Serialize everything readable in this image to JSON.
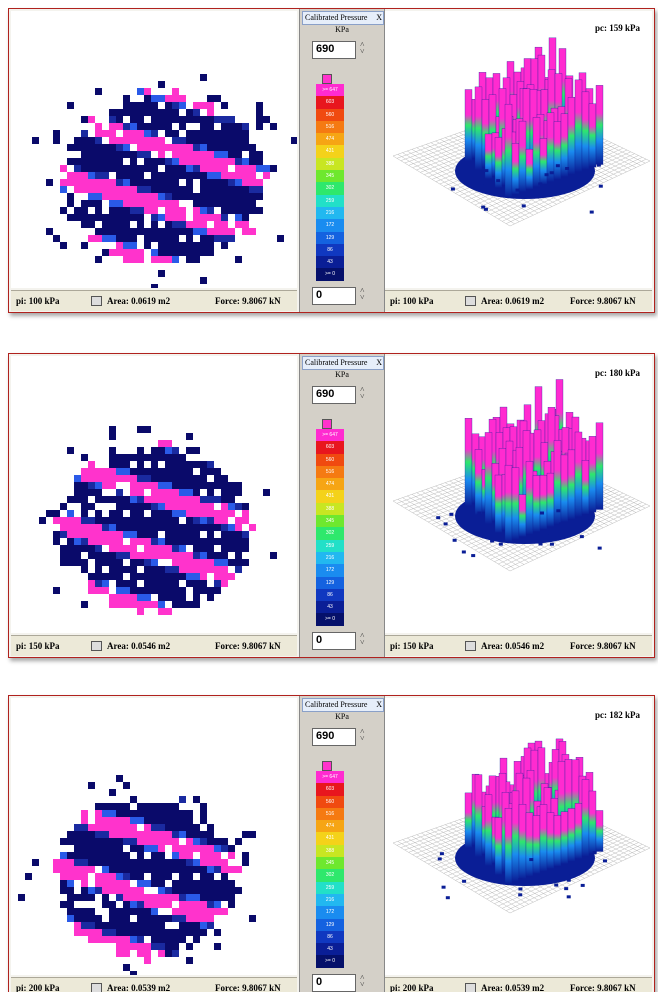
{
  "panels": [
    {
      "legend": {
        "title": "Calibrated Pressure",
        "close": "X",
        "unit": "KPa",
        "max": "690",
        "min": "0",
        "scale": [
          ">= 647",
          "603",
          "560",
          "516",
          "474",
          "431",
          "388",
          "345",
          "302",
          "259",
          "216",
          "172",
          "129",
          "86",
          "43",
          ">= 0"
        ]
      },
      "map_status": {
        "pi": "pi: 100 kPa",
        "area": "Area: 0.0619 m2",
        "force": "Force: 9.8067 kN"
      },
      "view": {
        "pc": "pc: 159 kPa"
      },
      "view_status": {
        "pi": "pi: 100 kPa",
        "area": "Area: 0.0619 m2",
        "force": "Force: 9.8067 kN"
      }
    },
    {
      "legend": {
        "title": "Calibrated Pressure",
        "close": "X",
        "unit": "KPa",
        "max": "690",
        "min": "0",
        "scale": [
          ">= 647",
          "603",
          "560",
          "516",
          "474",
          "431",
          "388",
          "345",
          "302",
          "259",
          "216",
          "172",
          "129",
          "86",
          "43",
          ">= 0"
        ]
      },
      "map_status": {
        "pi": "pi: 150 kPa",
        "area": "Area: 0.0546 m2",
        "force": "Force: 9.8067 kN"
      },
      "view": {
        "pc": "pc: 180 kPa"
      },
      "view_status": {
        "pi": "pi: 150 kPa",
        "area": "Area: 0.0546 m2",
        "force": "Force: 9.8067 kN"
      }
    },
    {
      "legend": {
        "title": "Calibrated Pressure",
        "close": "X",
        "unit": "KPa",
        "max": "690",
        "min": "0",
        "scale": [
          ">= 647",
          "603",
          "560",
          "516",
          "474",
          "431",
          "388",
          "345",
          "302",
          "259",
          "216",
          "172",
          "129",
          "86",
          "43",
          ">= 0"
        ]
      },
      "map_status": {
        "pi": "pi: 200 kPa",
        "area": "Area: 0.0539 m2",
        "force": "Force: 9.8067 kN"
      },
      "view": {
        "pc": "pc: 182 kPa"
      },
      "view_status": {
        "pi": "pi: 200 kPa",
        "area": "Area: 0.0539 m2",
        "force": "Force: 9.8067 kN"
      }
    }
  ]
}
